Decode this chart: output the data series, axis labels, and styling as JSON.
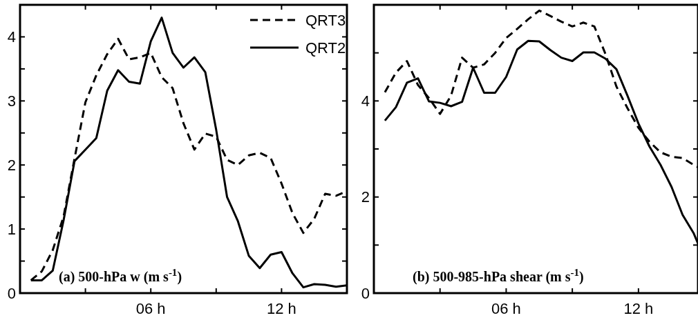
{
  "chart_data": [
    {
      "type": "line",
      "x": [
        0.5,
        1,
        1.5,
        2,
        2.5,
        3,
        3.5,
        4,
        4.5,
        5,
        5.5,
        6,
        6.5,
        7,
        7.5,
        8,
        8.5,
        9,
        9.5,
        10,
        10.5,
        11,
        11.5,
        12,
        12.5,
        13,
        13.5,
        14,
        14.5,
        15
      ],
      "series": [
        {
          "name": "QRT3",
          "color": "#000000",
          "line_style": "dashed",
          "values": [
            0.2,
            0.34,
            0.67,
            1.2,
            2.1,
            2.98,
            3.4,
            3.73,
            3.97,
            3.65,
            3.68,
            3.75,
            3.37,
            3.2,
            2.65,
            2.24,
            2.49,
            2.44,
            2.08,
            2.0,
            2.15,
            2.19,
            2.11,
            1.71,
            1.25,
            0.94,
            1.16,
            1.55,
            1.52,
            1.59
          ]
        },
        {
          "name": "QRT2",
          "color": "#000000",
          "line_style": "solid",
          "values": [
            0.2,
            0.2,
            0.35,
            1.14,
            2.06,
            2.24,
            2.42,
            3.16,
            3.48,
            3.3,
            3.27,
            3.93,
            4.3,
            3.75,
            3.52,
            3.68,
            3.45,
            2.55,
            1.5,
            1.12,
            0.58,
            0.39,
            0.6,
            0.64,
            0.31,
            0.09,
            0.14,
            0.13,
            0.1,
            0.12
          ]
        }
      ],
      "xlim": [
        0,
        15
      ],
      "xticks": [
        {
          "value": 3,
          "label": null
        },
        {
          "value": 6,
          "label": "06 h"
        },
        {
          "value": 9,
          "label": null
        },
        {
          "value": 12,
          "label": "12 h"
        }
      ],
      "ylim": [
        0,
        4.5
      ],
      "yticks": [
        0,
        {
          "value": 0.5,
          "label": null
        },
        1,
        {
          "value": 1.5,
          "label": null
        },
        2,
        {
          "value": 2.5,
          "label": null
        },
        3,
        {
          "value": 3.5,
          "label": null
        },
        4
      ],
      "annotations": [
        "(a) 500-hPa w  (m s$^{-1}$)"
      ],
      "legend": "top right",
      "grid": false
    },
    {
      "type": "line",
      "x": [
        0.5,
        1,
        1.5,
        2,
        2.5,
        3,
        3.5,
        4,
        4.5,
        5,
        5.5,
        6,
        6.5,
        7,
        7.5,
        8,
        8.5,
        9,
        9.5,
        10,
        10.5,
        11,
        11.5,
        12,
        12.5,
        13,
        13.5,
        14,
        14.5,
        14.7
      ],
      "series": [
        {
          "color": "#000000",
          "line_style": "dashed",
          "values": [
            4.18,
            4.59,
            4.83,
            4.33,
            4.06,
            3.73,
            4.11,
            4.9,
            4.69,
            4.76,
            5.0,
            5.31,
            5.5,
            5.7,
            5.88,
            5.77,
            5.65,
            5.55,
            5.63,
            5.55,
            4.98,
            4.3,
            3.85,
            3.44,
            3.15,
            2.93,
            2.84,
            2.81,
            2.67,
            2.62
          ]
        },
        {
          "color": "#000000",
          "line_style": "solid",
          "values": [
            3.59,
            3.87,
            4.38,
            4.47,
            3.99,
            3.96,
            3.89,
            3.98,
            4.69,
            4.17,
            4.17,
            4.5,
            5.07,
            5.25,
            5.24,
            5.06,
            4.9,
            4.83,
            5.01,
            5.01,
            4.88,
            4.66,
            4.11,
            3.53,
            3.05,
            2.67,
            2.21,
            1.63,
            1.25,
            1.03
          ]
        }
      ],
      "xlim": [
        0,
        14.7
      ],
      "xticks": [
        {
          "value": 3,
          "label": null
        },
        {
          "value": 6,
          "label": "06 h"
        },
        {
          "value": 9,
          "label": null
        },
        {
          "value": 12,
          "label": "12 h"
        }
      ],
      "ylim": [
        0,
        6
      ],
      "yticks": [
        0,
        {
          "value": 1,
          "label": null
        },
        2,
        {
          "value": 3,
          "label": null
        },
        4,
        {
          "value": 5,
          "label": null
        }
      ],
      "annotations": [
        "(b) 500-985-hPa shear (m s$^{-1}$)"
      ],
      "legend": false,
      "grid": false
    }
  ]
}
